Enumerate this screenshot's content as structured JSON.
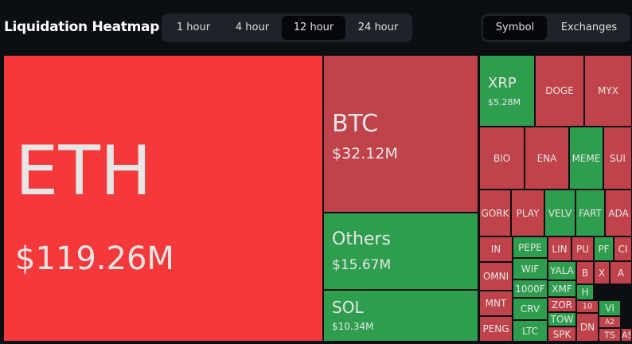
{
  "header": {
    "title": "Liquidation Heatmap",
    "time_tabs": [
      "1 hour",
      "4 hour",
      "12 hour",
      "24 hour"
    ],
    "view_tabs": [
      "Symbol",
      "Exchanges"
    ]
  },
  "tiles": [
    {
      "label": "ETH",
      "value": "$119.26M",
      "color": "#f5393b"
    },
    {
      "label": "BTC",
      "value": "$32.12M",
      "color": "#c0424a"
    },
    {
      "label": "Others",
      "value": "$15.67M",
      "color": "#2e9e4e"
    },
    {
      "label": "SOL",
      "value": "$10.34M",
      "color": "#2e9e4e"
    },
    {
      "label": "XRP",
      "value": "$5.28M",
      "color": "#2e9e4e"
    },
    {
      "label": "DOGE",
      "color": "#c0424a"
    },
    {
      "label": "MYX",
      "color": "#c0424a"
    },
    {
      "label": "BIO",
      "color": "#c0424a"
    },
    {
      "label": "ENA",
      "color": "#c0424a"
    },
    {
      "label": "MEME",
      "color": "#2e9e4e"
    },
    {
      "label": "SUI",
      "color": "#c0424a"
    },
    {
      "label": "GORK",
      "color": "#c0424a"
    },
    {
      "label": "PLAY",
      "color": "#c0424a"
    },
    {
      "label": "VELV",
      "color": "#2e9e4e"
    },
    {
      "label": "FART",
      "color": "#2e9e4e"
    },
    {
      "label": "ADA",
      "color": "#c0424a"
    },
    {
      "label": "IN",
      "color": "#c0424a"
    },
    {
      "label": "OMNI",
      "color": "#c0424a"
    },
    {
      "label": "MNT",
      "color": "#c0424a"
    },
    {
      "label": "PENG",
      "color": "#c0424a"
    },
    {
      "label": "PEPE",
      "color": "#2e9e4e"
    },
    {
      "label": "WIF",
      "color": "#2e9e4e"
    },
    {
      "label": "1000F",
      "color": "#2e9e4e"
    },
    {
      "label": "CRV",
      "color": "#2e9e4e"
    },
    {
      "label": "LTC",
      "color": "#2e9e4e"
    },
    {
      "label": "LIN",
      "color": "#c0424a"
    },
    {
      "label": "PU",
      "color": "#c0424a"
    },
    {
      "label": "PF",
      "color": "#2e9e4e"
    },
    {
      "label": "CI",
      "color": "#c0424a"
    },
    {
      "label": "YALA",
      "color": "#2e9e4e"
    },
    {
      "label": "XMF",
      "color": "#2e9e4e"
    },
    {
      "label": "ZOR",
      "color": "#c0424a"
    },
    {
      "label": "TOW",
      "color": "#2e9e4e"
    },
    {
      "label": "SPK",
      "color": "#c0424a"
    },
    {
      "label": "B",
      "color": "#c0424a"
    },
    {
      "label": "X",
      "color": "#c0424a"
    },
    {
      "label": "A",
      "color": "#c0424a"
    },
    {
      "label": "H",
      "color": "#2e9e4e"
    },
    {
      "label": "10",
      "color": "#c0424a"
    },
    {
      "label": "VI",
      "color": "#2e9e4e"
    },
    {
      "label": "A2",
      "color": "#c0424a"
    },
    {
      "label": "TS",
      "color": "#c0424a"
    },
    {
      "label": "DN",
      "color": "#c0424a"
    },
    {
      "label": "AS",
      "color": "#c0424a"
    }
  ]
}
